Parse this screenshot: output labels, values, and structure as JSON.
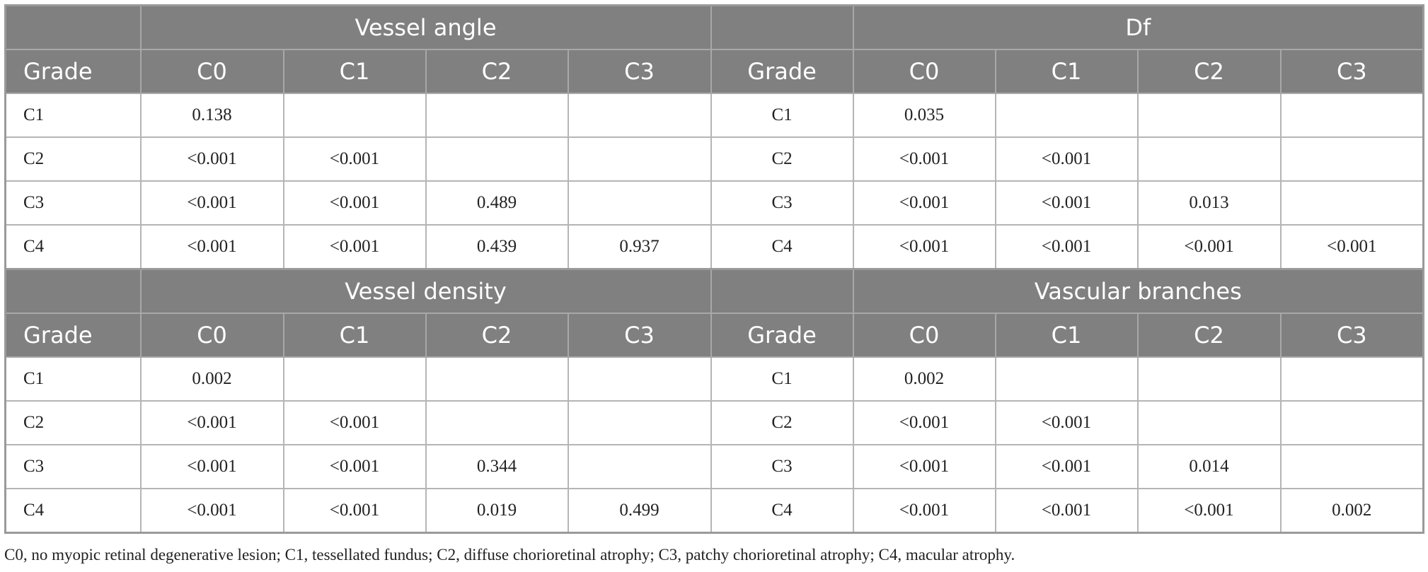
{
  "tables": [
    {
      "title_left": "Vessel angle",
      "title_right": "Df",
      "header": [
        "Grade",
        "C0",
        "C1",
        "C2",
        "C3",
        "Grade",
        "C0",
        "C1",
        "C2",
        "C3"
      ],
      "rows": [
        [
          "C1",
          "0.138",
          null,
          null,
          null,
          "C1",
          "0.035",
          null,
          null,
          null
        ],
        [
          "C2",
          "<0.001",
          "<0.001",
          null,
          null,
          "C2",
          "<0.001",
          "<0.001",
          null,
          null
        ],
        [
          "C3",
          "<0.001",
          "<0.001",
          "0.489",
          null,
          "C3",
          "<0.001",
          "<0.001",
          "0.013",
          null
        ],
        [
          "C4",
          "<0.001",
          "<0.001",
          "0.439",
          "0.937",
          "C4",
          "<0.001",
          "<0.001",
          "<0.001",
          "<0.001"
        ]
      ]
    },
    {
      "title_left": "Vessel density",
      "title_right": "Vascular branches",
      "header": [
        "Grade",
        "C0",
        "C1",
        "C2",
        "C3",
        "Grade",
        "C0",
        "C1",
        "C2",
        "C3"
      ],
      "rows": [
        [
          "C1",
          "0.002",
          null,
          null,
          null,
          "C1",
          "0.002",
          null,
          null,
          null
        ],
        [
          "C2",
          "<0.001",
          "<0.001",
          null,
          null,
          "C2",
          "<0.001",
          "<0.001",
          null,
          null
        ],
        [
          "C3",
          "<0.001",
          "<0.001",
          "0.344",
          null,
          "C3",
          "<0.001",
          "<0.001",
          "0.014",
          null
        ],
        [
          "C4",
          "<0.001",
          "<0.001",
          "0.019",
          "0.499",
          "C4",
          "<0.001",
          "<0.001",
          "<0.001",
          "0.002"
        ]
      ]
    }
  ],
  "footnote": "C0, no myopic retinal degenerative lesion; C1, tessellated fundus; C2, diffuse chorioretinal atrophy; C3, patchy chorioretinal atrophy; C4, macular atrophy."
}
